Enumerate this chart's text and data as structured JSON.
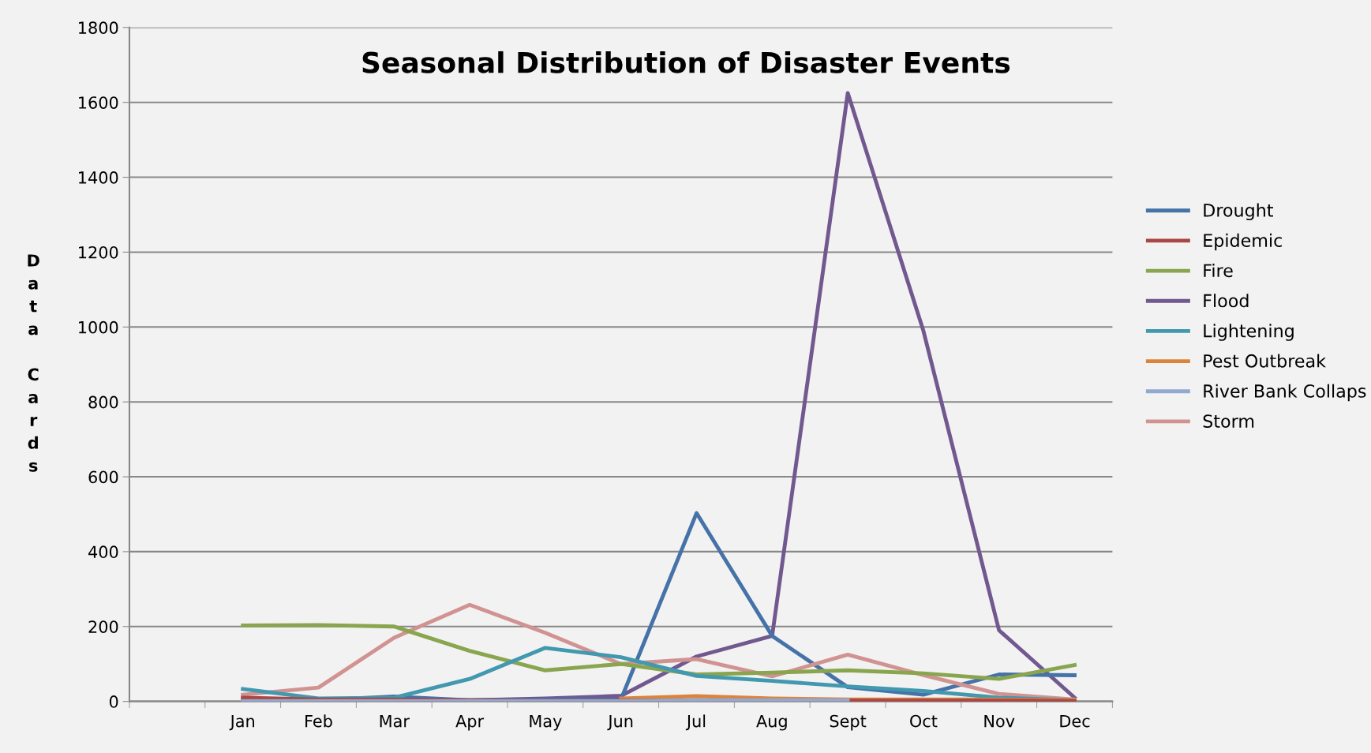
{
  "chart_data": {
    "type": "line",
    "title": "Seasonal Distribution of Disaster Events",
    "ylabel": "Data Cards",
    "categories": [
      null,
      "Jan",
      "Feb",
      "Mar",
      "Apr",
      "May",
      "Jun",
      "Jul",
      "Aug",
      "Sept",
      "Oct",
      "Nov",
      "Dec"
    ],
    "series": [
      {
        "name": "Drought",
        "color": "#4572a7",
        "values": [
          null,
          5,
          3,
          13,
          3,
          5,
          5,
          503,
          175,
          38,
          18,
          72,
          70
        ]
      },
      {
        "name": "Epidemic",
        "color": "#aa4643",
        "values": [
          null,
          10,
          5,
          5,
          3,
          2,
          2,
          2,
          2,
          2,
          2,
          2,
          1
        ]
      },
      {
        "name": "Fire",
        "color": "#89a54e",
        "values": [
          null,
          203,
          204,
          200,
          135,
          83,
          100,
          72,
          77,
          83,
          75,
          60,
          97
        ]
      },
      {
        "name": "Flood",
        "color": "#71588f",
        "values": [
          null,
          3,
          3,
          3,
          3,
          8,
          15,
          120,
          175,
          1625,
          990,
          190,
          10
        ]
      },
      {
        "name": "Lightening",
        "color": "#4198af",
        "values": [
          null,
          33,
          8,
          10,
          60,
          143,
          118,
          68,
          55,
          40,
          28,
          10,
          3
        ]
      },
      {
        "name": "Pest Outbreak",
        "color": "#db843d",
        "values": [
          null,
          null,
          null,
          null,
          null,
          null,
          8,
          14,
          8,
          5,
          5,
          5,
          3
        ]
      },
      {
        "name": "River Bank Collaps",
        "color": "#93a9cf",
        "values": [
          null,
          1,
          1,
          1,
          1,
          1,
          1,
          3,
          3,
          3,
          null,
          null,
          null
        ]
      },
      {
        "name": "Storm",
        "color": "#d19392",
        "values": [
          null,
          18,
          37,
          170,
          258,
          183,
          100,
          113,
          67,
          125,
          70,
          20,
          5
        ]
      }
    ],
    "ylim": [
      0,
      1800
    ],
    "yticks": [
      0,
      200,
      400,
      600,
      800,
      1000,
      1200,
      1400,
      1600,
      1800
    ],
    "grid": "y",
    "legend": "right",
    "marker": "none",
    "line_style": "solid"
  }
}
